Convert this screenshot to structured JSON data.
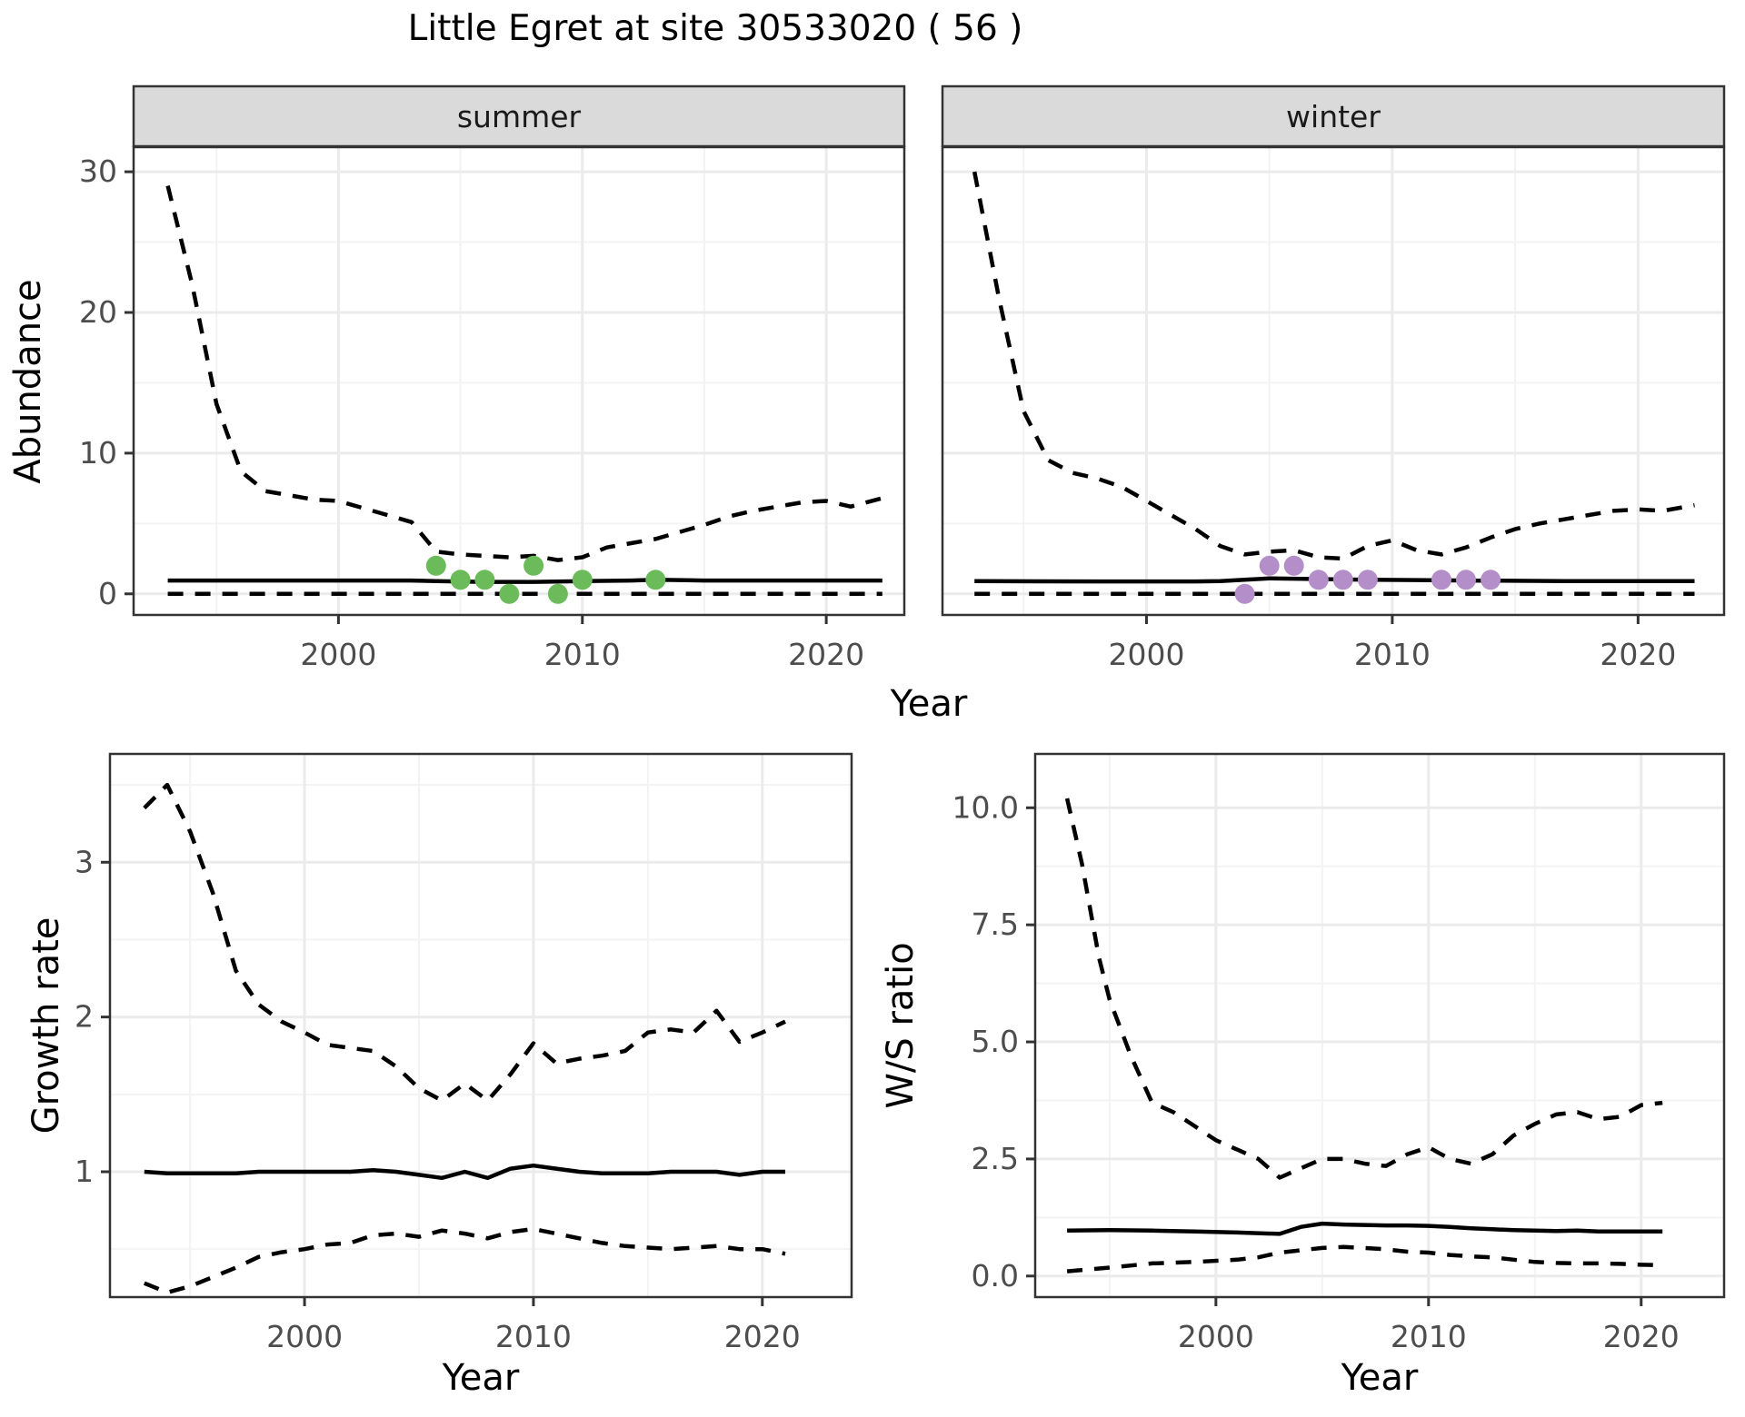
{
  "title": "Little Egret at site 30533020 ( 56 )",
  "labels": {
    "x": "Year",
    "y_top": "Abundance",
    "y_growth": "Growth rate",
    "y_ws": "W/S ratio"
  },
  "colors": {
    "summer_points": "#6CBB5B",
    "winter_points": "#B48EC8",
    "line": "#000000",
    "strip_fill": "#DADADA",
    "panel_border": "#333333",
    "grid_major": "#EBEBEB",
    "grid_minor": "#F3F3F3",
    "tick_text": "#4D4D4D"
  },
  "chart_data": [
    {
      "id": "summer",
      "type": "line",
      "facet_label": "summer",
      "xlabel": "Year",
      "ylabel": "Abundance",
      "grid": true,
      "legend": "none",
      "xlim": [
        1991.6,
        2023.2
      ],
      "ylim": [
        -1.5,
        31.75
      ],
      "xticks": {
        "values": [
          2000,
          2010,
          2020
        ],
        "labels": [
          "2000",
          "2010",
          "2020"
        ]
      },
      "xminor": [
        1995,
        2005,
        2015
      ],
      "yticks": {
        "values": [
          0,
          10,
          20,
          30
        ],
        "labels": [
          "0",
          "10",
          "20",
          "30"
        ]
      },
      "yminor": [
        5,
        15,
        25
      ],
      "series": [
        {
          "name": "upper-ci",
          "style": "dashed",
          "x": [
            1993,
            1994,
            1995,
            1996,
            1997,
            1998,
            1999,
            2000,
            2001,
            2002,
            2003,
            2004,
            2005,
            2006,
            2007,
            2008,
            2009,
            2010,
            2011,
            2012,
            2013,
            2014,
            2015,
            2016,
            2017,
            2018,
            2019,
            2020,
            2021,
            2022.3
          ],
          "y": [
            29,
            22,
            13.5,
            8.7,
            7.3,
            7.0,
            6.7,
            6.6,
            6.1,
            5.6,
            5.1,
            3.0,
            2.8,
            2.7,
            2.6,
            2.7,
            2.4,
            2.6,
            3.3,
            3.6,
            3.9,
            4.4,
            4.9,
            5.5,
            5.9,
            6.2,
            6.5,
            6.6,
            6.2,
            6.8
          ]
        },
        {
          "name": "median",
          "style": "solid",
          "x": [
            1993,
            1996,
            2000,
            2003,
            2004,
            2006,
            2008,
            2010,
            2012,
            2013,
            2015,
            2018,
            2020,
            2022.3
          ],
          "y": [
            0.95,
            0.95,
            0.95,
            0.95,
            0.9,
            0.85,
            0.85,
            0.9,
            0.95,
            1.0,
            0.95,
            0.95,
            0.95,
            0.95
          ]
        },
        {
          "name": "lower-ci",
          "style": "dashed",
          "x": [
            1993,
            2022.3
          ],
          "y": [
            0,
            0
          ]
        }
      ],
      "points": {
        "name": "summer-observations",
        "color_key": "summer_points",
        "x": [
          2004,
          2005,
          2006,
          2007,
          2008,
          2009,
          2010,
          2013
        ],
        "y": [
          2,
          1,
          1,
          0,
          2,
          0,
          1,
          1
        ]
      }
    },
    {
      "id": "winter",
      "type": "line",
      "facet_label": "winter",
      "xlabel": "Year",
      "ylabel": "Abundance",
      "grid": true,
      "legend": "none",
      "xlim": [
        1991.7,
        2023.5
      ],
      "ylim": [
        -1.5,
        31.75
      ],
      "xticks": {
        "values": [
          2000,
          2010,
          2020
        ],
        "labels": [
          "2000",
          "2010",
          "2020"
        ]
      },
      "xminor": [
        1995,
        2005,
        2015
      ],
      "yticks": {
        "values": [
          0,
          10,
          20,
          30
        ],
        "labels": [
          "0",
          "10",
          "20",
          "30"
        ]
      },
      "yminor": [
        5,
        15,
        25
      ],
      "series": [
        {
          "name": "upper-ci",
          "style": "dashed",
          "x": [
            1993,
            1994,
            1995,
            1996,
            1997,
            1998,
            1999,
            2000,
            2001,
            2002,
            2003,
            2004,
            2005,
            2006,
            2007,
            2008,
            2009,
            2010,
            2011,
            2012,
            2013,
            2014,
            2015,
            2016,
            2017,
            2018,
            2019,
            2020,
            2021,
            2022.3
          ],
          "y": [
            30,
            21,
            13,
            9.5,
            8.6,
            8.2,
            7.6,
            6.6,
            5.6,
            4.6,
            3.4,
            2.8,
            3.0,
            3.1,
            2.6,
            2.5,
            3.4,
            3.8,
            3.1,
            2.8,
            3.3,
            4.0,
            4.6,
            5.0,
            5.3,
            5.6,
            5.9,
            6.0,
            5.9,
            6.3
          ]
        },
        {
          "name": "median",
          "style": "solid",
          "x": [
            1993,
            1998,
            2002,
            2003,
            2004,
            2005,
            2007,
            2009,
            2011,
            2013,
            2015,
            2017,
            2019,
            2022.3
          ],
          "y": [
            0.9,
            0.88,
            0.88,
            0.9,
            1.0,
            1.1,
            1.05,
            1.0,
            0.98,
            0.95,
            0.93,
            0.9,
            0.9,
            0.9
          ]
        },
        {
          "name": "lower-ci",
          "style": "dashed",
          "x": [
            1993,
            2022.3
          ],
          "y": [
            0,
            0
          ]
        }
      ],
      "points": {
        "name": "winter-observations",
        "color_key": "winter_points",
        "x": [
          2004,
          2005,
          2006,
          2007,
          2008,
          2009,
          2012,
          2013,
          2014
        ],
        "y": [
          0,
          2,
          2,
          1,
          1,
          1,
          1,
          1,
          1
        ]
      }
    },
    {
      "id": "growth_rate",
      "type": "line",
      "facet_label": null,
      "xlabel": "Year",
      "ylabel": "Growth rate",
      "grid": true,
      "legend": "none",
      "xlim": [
        1991.5,
        2023.9
      ],
      "ylim": [
        0.19,
        3.7
      ],
      "xticks": {
        "values": [
          2000,
          2010,
          2020
        ],
        "labels": [
          "2000",
          "2010",
          "2020"
        ]
      },
      "xminor": [
        1995,
        2005,
        2015
      ],
      "yticks": {
        "values": [
          1,
          2,
          3
        ],
        "labels": [
          "1",
          "2",
          "3"
        ]
      },
      "yminor": [
        0.5,
        1.5,
        2.5,
        3.5
      ],
      "series": [
        {
          "name": "upper-ci",
          "style": "dashed",
          "x": [
            1993,
            1994,
            1995,
            1996,
            1997,
            1998,
            1999,
            2000,
            2001,
            2002,
            2003,
            2004,
            2005,
            2006,
            2007,
            2008,
            2009,
            2010,
            2011,
            2012,
            2013,
            2014,
            2015,
            2016,
            2017,
            2018,
            2019,
            2020,
            2021
          ],
          "y": [
            3.35,
            3.5,
            3.2,
            2.8,
            2.3,
            2.08,
            1.97,
            1.9,
            1.82,
            1.8,
            1.78,
            1.68,
            1.54,
            1.46,
            1.57,
            1.46,
            1.63,
            1.83,
            1.7,
            1.73,
            1.75,
            1.78,
            1.9,
            1.92,
            1.9,
            2.04,
            1.84,
            1.9,
            1.97
          ]
        },
        {
          "name": "median",
          "style": "solid",
          "x": [
            1993,
            1994,
            1995,
            1996,
            1997,
            1998,
            1999,
            2000,
            2001,
            2002,
            2003,
            2004,
            2005,
            2006,
            2007,
            2008,
            2009,
            2010,
            2011,
            2012,
            2013,
            2014,
            2015,
            2016,
            2017,
            2018,
            2019,
            2020,
            2021
          ],
          "y": [
            1.0,
            0.99,
            0.99,
            0.99,
            0.99,
            1.0,
            1.0,
            1.0,
            1.0,
            1.0,
            1.01,
            1.0,
            0.98,
            0.96,
            1.0,
            0.96,
            1.02,
            1.04,
            1.02,
            1.0,
            0.99,
            0.99,
            0.99,
            1.0,
            1.0,
            1.0,
            0.98,
            1.0,
            1.0
          ]
        },
        {
          "name": "lower-ci",
          "style": "dashed",
          "x": [
            1993,
            1994,
            1995,
            1996,
            1997,
            1998,
            1999,
            2000,
            2001,
            2002,
            2003,
            2004,
            2005,
            2006,
            2007,
            2008,
            2009,
            2010,
            2011,
            2012,
            2013,
            2014,
            2015,
            2016,
            2017,
            2018,
            2019,
            2020,
            2021
          ],
          "y": [
            0.28,
            0.22,
            0.26,
            0.32,
            0.38,
            0.45,
            0.48,
            0.5,
            0.53,
            0.54,
            0.59,
            0.6,
            0.58,
            0.62,
            0.6,
            0.57,
            0.61,
            0.63,
            0.6,
            0.57,
            0.54,
            0.52,
            0.51,
            0.5,
            0.51,
            0.52,
            0.5,
            0.5,
            0.47
          ]
        }
      ],
      "points": null
    },
    {
      "id": "ws_ratio",
      "type": "line",
      "facet_label": null,
      "xlabel": "Year",
      "ylabel": "W/S ratio",
      "grid": true,
      "legend": "none",
      "xlim": [
        1991.5,
        2023.9
      ],
      "ylim": [
        -0.45,
        11.15
      ],
      "xticks": {
        "values": [
          2000,
          2010,
          2020
        ],
        "labels": [
          "2000",
          "2010",
          "2020"
        ]
      },
      "xminor": [
        1995,
        2005,
        2015
      ],
      "yticks": {
        "values": [
          0,
          2.5,
          5,
          7.5,
          10
        ],
        "labels": [
          "0.0",
          "2.5",
          "5.0",
          "7.5",
          "10.0"
        ]
      },
      "yminor": [
        1.25,
        3.75,
        6.25,
        8.75
      ],
      "series": [
        {
          "name": "upper-ci",
          "style": "dashed",
          "x": [
            1993,
            1993.7,
            1994.5,
            1995,
            1996,
            1997,
            1998,
            1999,
            2000,
            2001,
            2002,
            2003,
            2004,
            2005,
            2006,
            2007,
            2008,
            2009,
            2010,
            2011,
            2012,
            2013,
            2014,
            2015,
            2016,
            2017,
            2018,
            2019,
            2020,
            2021
          ],
          "y": [
            10.2,
            8.8,
            6.8,
            5.9,
            4.7,
            3.7,
            3.5,
            3.2,
            2.9,
            2.7,
            2.5,
            2.1,
            2.3,
            2.5,
            2.5,
            2.4,
            2.35,
            2.6,
            2.75,
            2.5,
            2.4,
            2.6,
            3.0,
            3.25,
            3.45,
            3.5,
            3.35,
            3.4,
            3.65,
            3.7
          ]
        },
        {
          "name": "median",
          "style": "solid",
          "x": [
            1993,
            1995,
            1997,
            1999,
            2001,
            2003,
            2004,
            2005,
            2006,
            2007,
            2008,
            2009,
            2010,
            2011,
            2012,
            2013,
            2014,
            2015,
            2016,
            2017,
            2018,
            2019,
            2020,
            2021
          ],
          "y": [
            0.97,
            0.98,
            0.97,
            0.95,
            0.93,
            0.9,
            1.05,
            1.12,
            1.1,
            1.09,
            1.08,
            1.08,
            1.07,
            1.05,
            1.02,
            1.0,
            0.98,
            0.97,
            0.96,
            0.97,
            0.95,
            0.95,
            0.95,
            0.95
          ]
        },
        {
          "name": "lower-ci",
          "style": "dashed",
          "x": [
            1993,
            1995,
            1997,
            1999,
            2001,
            2002,
            2003,
            2004,
            2005,
            2006,
            2007,
            2008,
            2009,
            2010,
            2011,
            2012,
            2013,
            2014,
            2015,
            2016,
            2017,
            2018,
            2019,
            2020,
            2021
          ],
          "y": [
            0.1,
            0.18,
            0.27,
            0.3,
            0.35,
            0.4,
            0.5,
            0.55,
            0.6,
            0.62,
            0.6,
            0.57,
            0.52,
            0.5,
            0.45,
            0.42,
            0.4,
            0.35,
            0.3,
            0.28,
            0.27,
            0.27,
            0.26,
            0.24,
            0.23
          ]
        }
      ],
      "points": null
    }
  ]
}
